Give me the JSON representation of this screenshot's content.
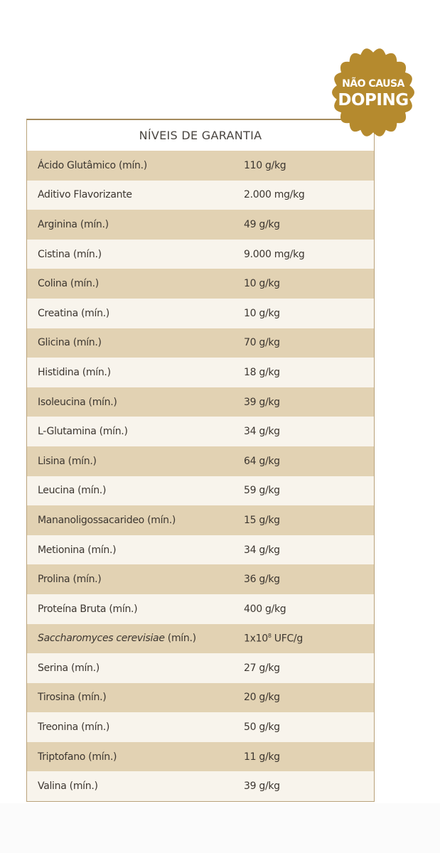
{
  "table": {
    "title": "NÍVEIS DE GARANTIA",
    "rows": [
      {
        "name": "Ácido Glutâmico (mín.)",
        "value": "110 g/kg"
      },
      {
        "name": "Aditivo Flavorizante",
        "value": "2.000 mg/kg"
      },
      {
        "name": "Arginina (mín.)",
        "value": "49 g/kg"
      },
      {
        "name": "Cistina (mín.)",
        "value": "9.000 mg/kg"
      },
      {
        "name": "Colina (mín.)",
        "value": "10 g/kg"
      },
      {
        "name": "Creatina (mín.)",
        "value": "10 g/kg"
      },
      {
        "name": "Glicina (mín.)",
        "value": "70 g/kg"
      },
      {
        "name": "Histidina (mín.)",
        "value": "18 g/kg"
      },
      {
        "name": "Isoleucina (mín.)",
        "value": "39 g/kg"
      },
      {
        "name": "L-Glutamina (mín.)",
        "value": "34 g/kg"
      },
      {
        "name": "Lisina (mín.)",
        "value": "64 g/kg"
      },
      {
        "name": "Leucina (mín.)",
        "value": "59 g/kg"
      },
      {
        "name": "Mananoligossacarideo (mín.)",
        "value": "15 g/kg"
      },
      {
        "name": "Metionina (mín.)",
        "value": "34 g/kg"
      },
      {
        "name": "Prolina (mín.)",
        "value": "36 g/kg"
      },
      {
        "name": "Proteína Bruta (mín.)",
        "value": "400 g/kg"
      },
      {
        "name_italic": "Saccharomyces cerevisiae",
        "name": " (mín.)",
        "value": "1x10",
        "value_sup": "8",
        "value_suffix": " UFC/g"
      },
      {
        "name": "Serina (mín.)",
        "value": "27 g/kg"
      },
      {
        "name": "Tirosina (mín.)",
        "value": "20 g/kg"
      },
      {
        "name": "Treonina (mín.)",
        "value": "50 g/kg"
      },
      {
        "name": "Triptofano (mín.)",
        "value": "11 g/kg"
      },
      {
        "name": "Valina (mín.)",
        "value": "39 g/kg"
      }
    ]
  },
  "badge": {
    "line1": "NÃO CAUSA",
    "line2": "DOPING",
    "color": "#b58a2e"
  },
  "colors": {
    "row_tan": "#e2d2b3",
    "row_light": "#f8f4ec",
    "border": "#b9a27a"
  }
}
